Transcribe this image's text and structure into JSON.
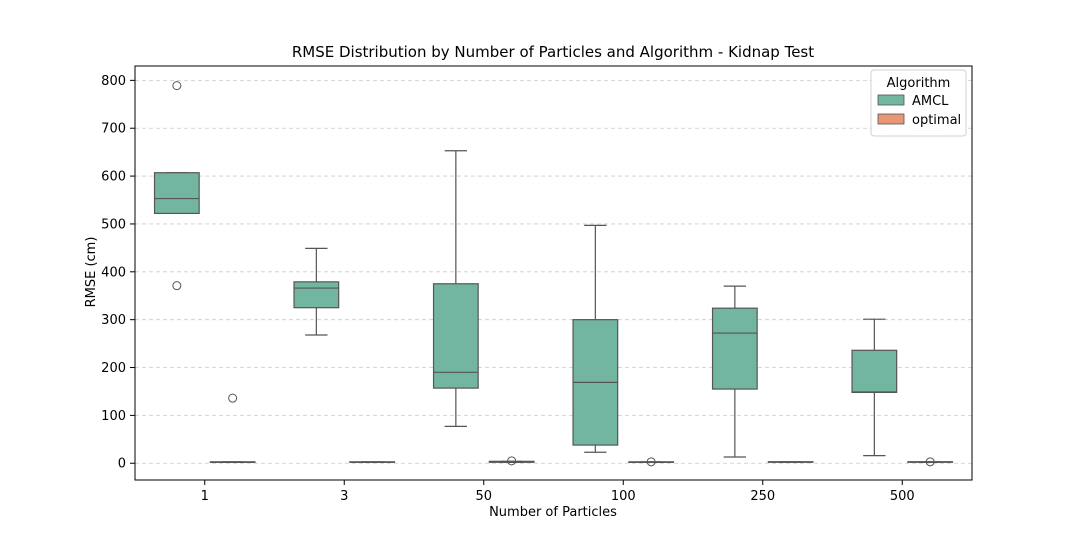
{
  "chart_data": {
    "type": "box",
    "title": "RMSE Distribution by Number of Particles and Algorithm - Kidnap Test",
    "xlabel": "Number of Particles",
    "ylabel": "RMSE (cm)",
    "categories": [
      "1",
      "3",
      "50",
      "100",
      "250",
      "500"
    ],
    "ylim": [
      -35,
      830
    ],
    "yticks": [
      0,
      100,
      200,
      300,
      400,
      500,
      600,
      700,
      800
    ],
    "grid": "y-dashed",
    "legend": {
      "title": "Algorithm",
      "position": "top-right"
    },
    "series": [
      {
        "name": "AMCL",
        "color": "#72b6a1",
        "boxes": [
          {
            "whislo": 522,
            "q1": 522,
            "med": 553,
            "q3": 607,
            "whishi": 607,
            "fliers": [
              789,
              371
            ]
          },
          {
            "whislo": 268,
            "q1": 325,
            "med": 366,
            "q3": 379,
            "whishi": 449,
            "fliers": []
          },
          {
            "whislo": 77,
            "q1": 157,
            "med": 190,
            "q3": 375,
            "whishi": 653,
            "fliers": []
          },
          {
            "whislo": 23,
            "q1": 38,
            "med": 169,
            "q3": 300,
            "whishi": 497,
            "fliers": []
          },
          {
            "whislo": 13,
            "q1": 155,
            "med": 272,
            "q3": 324,
            "whishi": 370,
            "fliers": []
          },
          {
            "whislo": 16,
            "q1": 148,
            "med": 149,
            "q3": 236,
            "whishi": 301,
            "fliers": []
          }
        ]
      },
      {
        "name": "optimal",
        "color": "#e99675",
        "boxes": [
          {
            "whislo": 2,
            "q1": 2,
            "med": 2,
            "q3": 3,
            "whishi": 3,
            "fliers": [
              136
            ]
          },
          {
            "whislo": 2,
            "q1": 2,
            "med": 2,
            "q3": 3,
            "whishi": 3,
            "fliers": []
          },
          {
            "whislo": 2,
            "q1": 2,
            "med": 3,
            "q3": 4,
            "whishi": 4,
            "fliers": [
              5
            ]
          },
          {
            "whislo": 2,
            "q1": 2,
            "med": 2,
            "q3": 3,
            "whishi": 3,
            "fliers": [
              3
            ]
          },
          {
            "whislo": 2,
            "q1": 2,
            "med": 3,
            "q3": 3,
            "whishi": 3,
            "fliers": []
          },
          {
            "whislo": 2,
            "q1": 2,
            "med": 3,
            "q3": 3,
            "whishi": 3,
            "fliers": [
              3
            ]
          }
        ]
      }
    ]
  }
}
